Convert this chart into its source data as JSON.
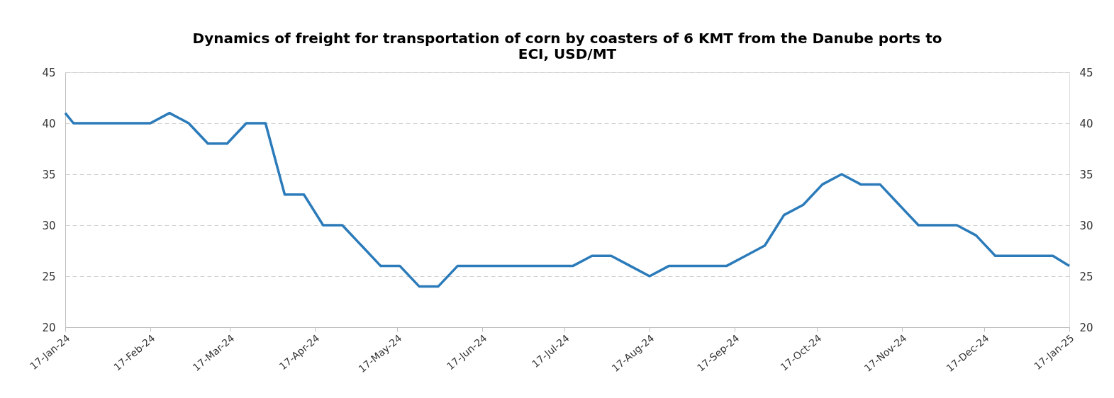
{
  "chart_data": {
    "type": "line",
    "title": "Dynamics of freight for transportation of corn by coasters of 6 KMT from the Danube ports to ECI, USD/MT",
    "x": [
      "2024-01-17",
      "2024-01-20",
      "2024-01-27",
      "2024-02-03",
      "2024-02-10",
      "2024-02-17",
      "2024-02-24",
      "2024-03-02",
      "2024-03-09",
      "2024-03-16",
      "2024-03-23",
      "2024-03-30",
      "2024-04-06",
      "2024-04-13",
      "2024-04-20",
      "2024-04-27",
      "2024-05-04",
      "2024-05-11",
      "2024-05-18",
      "2024-05-25",
      "2024-06-01",
      "2024-06-08",
      "2024-06-15",
      "2024-06-22",
      "2024-06-29",
      "2024-07-06",
      "2024-07-13",
      "2024-07-20",
      "2024-07-27",
      "2024-08-03",
      "2024-08-10",
      "2024-08-17",
      "2024-08-24",
      "2024-08-31",
      "2024-09-07",
      "2024-09-14",
      "2024-09-21",
      "2024-09-28",
      "2024-10-05",
      "2024-10-12",
      "2024-10-19",
      "2024-10-26",
      "2024-11-02",
      "2024-11-09",
      "2024-11-16",
      "2024-11-23",
      "2024-11-30",
      "2024-12-07",
      "2024-12-14",
      "2024-12-21",
      "2024-12-28",
      "2025-01-04",
      "2025-01-11",
      "2025-01-17"
    ],
    "series": [
      {
        "color": "#2b7bba",
        "values": [
          41,
          40,
          40,
          40,
          40,
          40,
          41,
          40,
          38,
          38,
          40,
          40,
          33,
          33,
          30,
          30,
          28,
          26,
          26,
          24,
          24,
          26,
          26,
          26,
          26,
          26,
          26,
          26,
          27,
          27,
          26,
          25,
          26,
          26,
          26,
          26,
          27,
          28,
          31,
          32,
          34,
          35,
          34,
          34,
          32,
          30,
          30,
          30,
          29,
          27,
          27,
          27,
          27,
          26
        ]
      }
    ],
    "xlim": [
      "2024-01-17",
      "2025-01-17"
    ],
    "xticks": [
      {
        "value": "2024-01-17",
        "label": "17-Jan-24"
      },
      {
        "value": "2024-02-17",
        "label": "17-Feb-24"
      },
      {
        "value": "2024-03-17",
        "label": "17-Mar-24"
      },
      {
        "value": "2024-04-17",
        "label": "17-Apr-24"
      },
      {
        "value": "2024-05-17",
        "label": "17-May-24"
      },
      {
        "value": "2024-06-17",
        "label": "17-Jun-24"
      },
      {
        "value": "2024-07-17",
        "label": "17-Jul-24"
      },
      {
        "value": "2024-08-17",
        "label": "17-Aug-24"
      },
      {
        "value": "2024-09-17",
        "label": "17-Sep-24"
      },
      {
        "value": "2024-10-17",
        "label": "17-Oct-24"
      },
      {
        "value": "2024-11-17",
        "label": "17-Nov-24"
      },
      {
        "value": "2024-12-17",
        "label": "17-Dec-24"
      },
      {
        "value": "2025-01-17",
        "label": "17-Jan-25"
      }
    ],
    "ylim": [
      20,
      45
    ],
    "yticks": [
      20,
      25,
      30,
      35,
      40,
      45
    ],
    "y2lim": [
      20,
      45
    ],
    "y2ticks": [
      20,
      25,
      30,
      35,
      40,
      45
    ],
    "grid": "y",
    "line_style": "solid",
    "marker": "none"
  }
}
